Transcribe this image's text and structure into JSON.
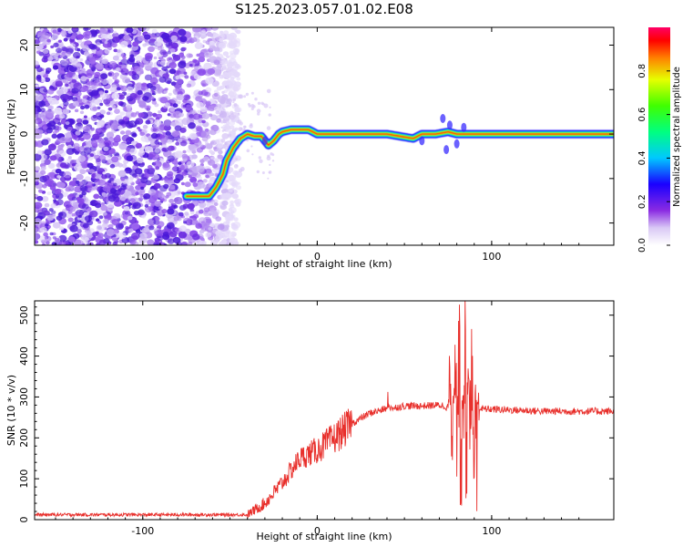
{
  "title": "S125.2023.057.01.02.E08",
  "chart_data": [
    {
      "type": "heatmap",
      "xlabel": "Height of straight line (km)",
      "ylabel": "Frequency (Hz)",
      "xlim": [
        -162,
        170
      ],
      "ylim": [
        -25,
        24
      ],
      "xticks": [
        -100,
        0,
        100
      ],
      "yticks": [
        -20,
        -10,
        0,
        10,
        20
      ],
      "colorbar": {
        "label": "Normalized spectral amplitude",
        "range": [
          0,
          1
        ],
        "ticks": [
          "0.0",
          "0.2",
          "0.4",
          "0.6",
          "0.8"
        ]
      },
      "ridge_frequency_hz": {
        "x": [
          -75,
          -62,
          -58,
          -54,
          -52,
          -48,
          -44,
          -40,
          -36,
          -32,
          -28,
          -25,
          -22,
          -20,
          -15,
          -10,
          -5,
          0,
          20,
          40,
          55,
          60,
          68,
          75,
          80,
          100,
          130,
          170
        ],
        "y": [
          -14,
          -14,
          -12,
          -9,
          -6,
          -3,
          -1,
          0,
          -0.5,
          -0.5,
          -2.5,
          -1.5,
          0,
          0.5,
          1,
          1,
          1,
          0,
          0,
          0,
          -1,
          0,
          0,
          0.5,
          0,
          0,
          0,
          0
        ]
      },
      "noise_region_x": [
        -162,
        -55
      ]
    },
    {
      "type": "line",
      "xlabel": "Height of straight line (km)",
      "ylabel": "SNR (10 * v/v)",
      "xlim": [
        -162,
        170
      ],
      "ylim": [
        0,
        535
      ],
      "xticks": [
        -100,
        0,
        100
      ],
      "yticks": [
        0,
        100,
        200,
        300,
        400,
        500
      ],
      "color": "#e8302c",
      "trend": {
        "x": [
          -162,
          -40,
          -30,
          -20,
          -10,
          0,
          10,
          20,
          30,
          40,
          50,
          60,
          70,
          75,
          100,
          130,
          170
        ],
        "y": [
          12,
          12,
          40,
          90,
          150,
          170,
          200,
          235,
          260,
          272,
          278,
          278,
          280,
          275,
          270,
          265,
          265
        ]
      },
      "spike_region": {
        "x": [
          75,
          77,
          78,
          79,
          80,
          81,
          82,
          83,
          84,
          85,
          86,
          87,
          88,
          89,
          90,
          91,
          92,
          93
        ],
        "y": [
          220,
          350,
          160,
          260,
          380,
          120,
          530,
          40,
          310,
          500,
          60,
          330,
          200,
          460,
          110,
          290,
          20,
          250
        ]
      }
    }
  ]
}
